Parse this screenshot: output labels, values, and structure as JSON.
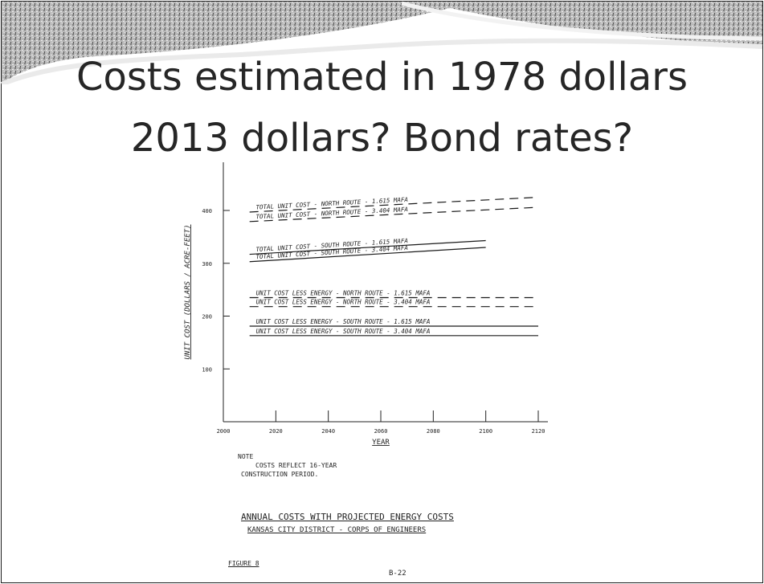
{
  "slide": {
    "title_line1": "Costs estimated in 1978 dollars",
    "title_line2": "2013 dollars?  Bond rates?"
  },
  "figure": {
    "note_label": "NOTE",
    "note_line1": "COSTS REFLECT 16-YEAR",
    "note_line2": "CONSTRUCTION PERIOD.",
    "caption_line1": "ANNUAL COSTS WITH PROJECTED ENERGY COSTS",
    "caption_line2": "KANSAS CITY DISTRICT - CORPS OF ENGINEERS",
    "figure_label": "FIGURE 8",
    "page_number": "B-22"
  },
  "chart_data": {
    "type": "line",
    "title": "ANNUAL COSTS WITH PROJECTED ENERGY COSTS",
    "xlabel": "YEAR",
    "ylabel": "UNIT COST (DOLLARS / ACRE-FEET)",
    "xlim": [
      2000,
      2120
    ],
    "ylim": [
      0,
      400
    ],
    "x_ticks": [
      "2000",
      "2020",
      "2040",
      "2060",
      "2080",
      "2100",
      "2120"
    ],
    "y_ticks": [
      "100",
      "200",
      "300",
      "400"
    ],
    "grid": false,
    "series": [
      {
        "name": "TOTAL UNIT COST - NORTH ROUTE - 1.615 MAFA",
        "style": "dashed",
        "x": [
          2010,
          2120
        ],
        "y": [
          397,
          425
        ]
      },
      {
        "name": "TOTAL UNIT COST - NORTH ROUTE - 3.404 MAFA",
        "style": "dashed",
        "x": [
          2010,
          2120
        ],
        "y": [
          379,
          406
        ]
      },
      {
        "name": "TOTAL UNIT COST - SOUTH ROUTE - 1.615 MAFA",
        "style": "solid",
        "x": [
          2010,
          2100
        ],
        "y": [
          317,
          343
        ]
      },
      {
        "name": "TOTAL UNIT COST - SOUTH ROUTE - 3.404 MAFA",
        "style": "solid",
        "x": [
          2010,
          2100
        ],
        "y": [
          303,
          330
        ]
      },
      {
        "name": "UNIT COST LESS ENERGY - NORTH ROUTE - 1.615 MAFA",
        "style": "dashed",
        "x": [
          2010,
          2120
        ],
        "y": [
          235,
          235
        ]
      },
      {
        "name": "UNIT COST LESS ENERGY - NORTH ROUTE - 3.404 MAFA",
        "style": "dashed",
        "x": [
          2010,
          2120
        ],
        "y": [
          218,
          218
        ]
      },
      {
        "name": "UNIT COST LESS ENERGY - SOUTH ROUTE - 1.615 MAFA",
        "style": "solid",
        "x": [
          2010,
          2120
        ],
        "y": [
          181,
          181
        ]
      },
      {
        "name": "UNIT COST LESS ENERGY - SOUTH ROUTE - 3.404 MAFA",
        "style": "solid",
        "x": [
          2010,
          2120
        ],
        "y": [
          163,
          163
        ]
      }
    ]
  }
}
